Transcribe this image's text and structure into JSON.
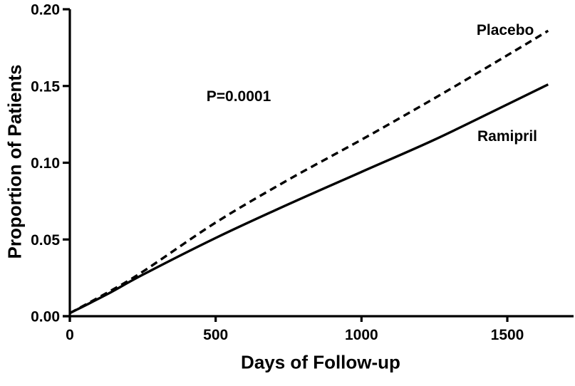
{
  "figure": {
    "background_color": "#ffffff",
    "ink_color": "#000000"
  },
  "chart_data": {
    "type": "line",
    "title": "",
    "xlabel": "Days of Follow-up",
    "ylabel": "Proportion of Patients",
    "xlim": [
      0,
      1730
    ],
    "ylim": [
      0,
      0.2
    ],
    "grid": false,
    "legend": "inline-labels",
    "x_ticks": {
      "values": [
        0,
        500,
        1000,
        1500
      ],
      "labels": [
        "0",
        "500",
        "1000",
        "1500"
      ]
    },
    "y_ticks": {
      "values": [
        0,
        0.05,
        0.1,
        0.15,
        0.2
      ],
      "labels": [
        "0.00",
        "0.05",
        "0.10",
        "0.15",
        "0.20"
      ]
    },
    "x": [
      0,
      125,
      250,
      500,
      750,
      1000,
      1250,
      1500,
      1640
    ],
    "series": [
      {
        "name": "Placebo",
        "line_style": "dashed",
        "color": "#000000",
        "values": [
          0.002,
          0.015,
          0.029,
          0.061,
          0.089,
          0.115,
          0.142,
          0.17,
          0.186
        ],
        "label_anchor": {
          "x": 1493,
          "y": 0.186
        }
      },
      {
        "name": "Ramipril",
        "line_style": "solid",
        "color": "#000000",
        "values": [
          0.002,
          0.014,
          0.027,
          0.051,
          0.073,
          0.094,
          0.115,
          0.138,
          0.151
        ],
        "label_anchor": {
          "x": 1500,
          "y": 0.117
        }
      }
    ],
    "annotations": [
      {
        "text": "P=0.0001",
        "x": 579,
        "y": 0.143
      }
    ]
  }
}
